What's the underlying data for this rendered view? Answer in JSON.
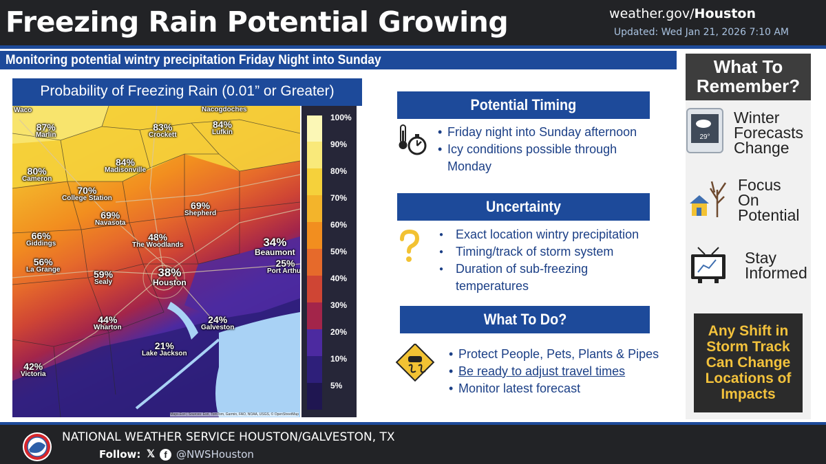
{
  "header": {
    "title": "Freezing Rain Potential Growing",
    "site_prefix": "weather.gov/",
    "site_office": "Houston",
    "updated": "Updated: Wed Jan 21, 2026 7:10 AM"
  },
  "subtitle": "Monitoring potential wintry precipitation Friday Night into Sunday",
  "map": {
    "title": "Probability of Freezing Rain (0.01” or Greater)",
    "attribution": "Maps.Esri | Sources: Esri, TomTom, Garmin, FAO, NOAA, USGS, © OpenStreetMap",
    "places": [
      {
        "pct": "",
        "name": "Waco"
      },
      {
        "pct": "87%",
        "name": "Marlin"
      },
      {
        "pct": "",
        "name": "Nacogdoches"
      },
      {
        "pct": "83%",
        "name": "Crockett"
      },
      {
        "pct": "84%",
        "name": "Lufkin"
      },
      {
        "pct": "84%",
        "name": "Madisonville"
      },
      {
        "pct": "80%",
        "name": "Cameron"
      },
      {
        "pct": "70%",
        "name": "College Station"
      },
      {
        "pct": "69%",
        "name": "Navasota"
      },
      {
        "pct": "69%",
        "name": "Shepherd"
      },
      {
        "pct": "66%",
        "name": "Giddings"
      },
      {
        "pct": "48%",
        "name": "The Woodlands"
      },
      {
        "pct": "34%",
        "name": "Beaumont"
      },
      {
        "pct": "56%",
        "name": "La Grange"
      },
      {
        "pct": "59%",
        "name": "Sealy"
      },
      {
        "pct": "38%",
        "name": "Houston"
      },
      {
        "pct": "25%",
        "name": "Port Arthur"
      },
      {
        "pct": "44%",
        "name": "Wharton"
      },
      {
        "pct": "24%",
        "name": "Galveston"
      },
      {
        "pct": "21%",
        "name": "Lake Jackson"
      },
      {
        "pct": "42%",
        "name": "Victoria"
      }
    ],
    "legend": [
      {
        "label": "100%",
        "color": "#fbf7b6"
      },
      {
        "label": "90%",
        "color": "#f9e97a"
      },
      {
        "label": "80%",
        "color": "#f5d13b"
      },
      {
        "label": "70%",
        "color": "#f3b42b"
      },
      {
        "label": "60%",
        "color": "#f28e1f"
      },
      {
        "label": "50%",
        "color": "#e66a2b"
      },
      {
        "label": "40%",
        "color": "#cf4534"
      },
      {
        "label": "30%",
        "color": "#a3254a"
      },
      {
        "label": "20%",
        "color": "#4c2aa0"
      },
      {
        "label": "10%",
        "color": "#2e1f7a"
      },
      {
        "label": "5%",
        "color": "#1f1651"
      },
      {
        "label": "",
        "color": "#2c2c3e"
      }
    ]
  },
  "timing": {
    "heading": "Potential Timing",
    "bullets": [
      "Friday night into Sunday afternoon",
      "Icy conditions possible through",
      "Monday"
    ]
  },
  "uncertainty": {
    "heading": "Uncertainty",
    "bullets": [
      "Exact location wintry precipitation",
      "Timing/track of storm system",
      "Duration of sub-freezing",
      "temperatures"
    ]
  },
  "todo": {
    "heading": "What To Do?",
    "bullets": [
      "Protect People, Pets, Plants & Pipes",
      "Be ready to adjust travel times",
      "Monitor latest forecast"
    ]
  },
  "sidebar": {
    "heading_line1": "What To",
    "heading_line2": "Remember?",
    "items": [
      {
        "l1": "Winter",
        "l2": "Forecasts",
        "l3": "Change",
        "icon_text": "29°"
      },
      {
        "l1": "Focus",
        "l2": "On",
        "l3": "Potential"
      },
      {
        "l1": "Stay",
        "l2": "Informed"
      }
    ],
    "shift": {
      "l1": "Any Shift in",
      "l2": "Storm Track",
      "l3": "Can Change",
      "l4": "Locations of",
      "l5": "Impacts"
    }
  },
  "footer": {
    "org": "NATIONAL WEATHER SERVICE HOUSTON/GALVESTON, TX",
    "follow": "Follow:",
    "x_glyph": "𝕏",
    "fb_glyph": "f",
    "handle": "@NWSHouston"
  },
  "colors": {
    "brand_blue": "#1d4a9a",
    "header_dark": "#222326",
    "text_blue": "#1b3f86",
    "shift_gold": "#f3c23c",
    "question_gold": "#f2c233"
  }
}
